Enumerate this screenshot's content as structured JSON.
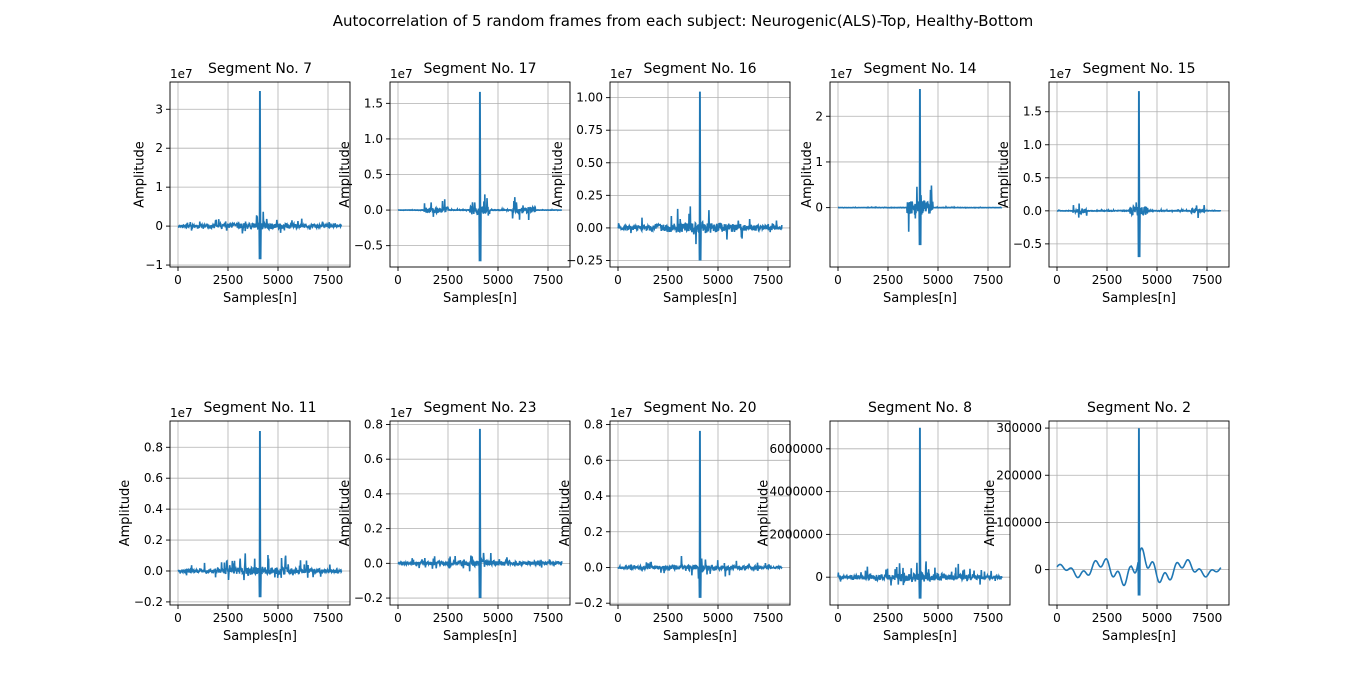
{
  "figure": {
    "suptitle": "Autocorrelation of 5 random frames from each subject: Neurogenic(ALS)-Top, Healthy-Bottom"
  },
  "style": {
    "line_color": "#1f77b4",
    "grid_color": "#b0b0b0",
    "text_color": "#000000"
  },
  "chart_data": [
    {
      "type": "line",
      "title": "Segment No. 7",
      "xlabel": "Samples[n]",
      "ylabel": "Amplitude",
      "xlim": [
        -400,
        8600
      ],
      "xticks": [
        0,
        2500,
        5000,
        7500
      ],
      "xtick_labels": [
        "0",
        "2500",
        "5000",
        "7500"
      ],
      "ylim": [
        -1.05,
        3.7
      ],
      "yticks": [
        -1,
        0,
        1,
        2,
        3
      ],
      "ytick_labels": [
        "−1",
        "0",
        "1",
        "2",
        "3"
      ],
      "offset_text": "1e7",
      "grid": true,
      "center": 4096,
      "peak": 3.45,
      "min": -0.85,
      "max_side": 0.72,
      "profile": "burst"
    },
    {
      "type": "line",
      "title": "Segment No. 17",
      "xlabel": "Samples[n]",
      "ylabel": "Amplitude",
      "xlim": [
        -400,
        8600
      ],
      "xticks": [
        0,
        2500,
        5000,
        7500
      ],
      "xtick_labels": [
        "0",
        "2500",
        "5000",
        "7500"
      ],
      "ylim": [
        -0.8,
        1.8
      ],
      "yticks": [
        -0.5,
        0,
        0.5,
        1,
        1.5
      ],
      "ytick_labels": [
        "−0.5",
        "0.0",
        "0.5",
        "1.0",
        "1.5"
      ],
      "offset_text": "1e7",
      "grid": true,
      "center": 4096,
      "peak": 1.65,
      "min": -0.72,
      "max_side": 0.42,
      "profile": "two_lobes"
    },
    {
      "type": "line",
      "title": "Segment No. 16",
      "xlabel": "Samples[n]",
      "ylabel": "Amplitude",
      "xlim": [
        -400,
        8600
      ],
      "xticks": [
        0,
        2500,
        5000,
        7500
      ],
      "xtick_labels": [
        "0",
        "2500",
        "5000",
        "7500"
      ],
      "ylim": [
        -0.3,
        1.12
      ],
      "yticks": [
        -0.25,
        0,
        0.25,
        0.5,
        0.75,
        1
      ],
      "ytick_labels": [
        "−0.25",
        "0.00",
        "0.25",
        "0.50",
        "0.75",
        "1.00"
      ],
      "offset_text": "1e7",
      "grid": true,
      "center": 4096,
      "peak": 1.04,
      "min": -0.25,
      "max_side": 0.37,
      "profile": "burst"
    },
    {
      "type": "line",
      "title": "Segment No. 14",
      "xlabel": "Samples[n]",
      "ylabel": "Amplitude",
      "xlim": [
        -400,
        8600
      ],
      "xticks": [
        0,
        2500,
        5000,
        7500
      ],
      "xtick_labels": [
        "0",
        "2500",
        "5000",
        "7500"
      ],
      "ylim": [
        -1.3,
        2.75
      ],
      "yticks": [
        0,
        1,
        2
      ],
      "ytick_labels": [
        "0",
        "1",
        "2"
      ],
      "offset_text": "1e7",
      "grid": true,
      "center": 4096,
      "peak": 2.58,
      "min": -0.82,
      "max_side": 1.12,
      "profile": "central"
    },
    {
      "type": "line",
      "title": "Segment No. 15",
      "xlabel": "Samples[n]",
      "ylabel": "Amplitude",
      "xlim": [
        -400,
        8600
      ],
      "xticks": [
        0,
        2500,
        5000,
        7500
      ],
      "xtick_labels": [
        "0",
        "2500",
        "5000",
        "7500"
      ],
      "ylim": [
        -0.85,
        1.95
      ],
      "yticks": [
        -0.5,
        0,
        0.5,
        1,
        1.5
      ],
      "ytick_labels": [
        "−0.5",
        "0.0",
        "0.5",
        "1.0",
        "1.5"
      ],
      "offset_text": "1e7",
      "grid": true,
      "center": 4096,
      "peak": 1.8,
      "min": -0.7,
      "max_side": 0.45,
      "profile": "edges"
    },
    {
      "type": "line",
      "title": "Segment No. 11",
      "xlabel": "Samples[n]",
      "ylabel": "Amplitude",
      "xlim": [
        -400,
        8600
      ],
      "xticks": [
        0,
        2500,
        5000,
        7500
      ],
      "xtick_labels": [
        "0",
        "2500",
        "5000",
        "7500"
      ],
      "ylim": [
        -0.22,
        0.97
      ],
      "yticks": [
        -0.2,
        0,
        0.2,
        0.4,
        0.6,
        0.8
      ],
      "ytick_labels": [
        "−0.2",
        "0.0",
        "0.2",
        "0.4",
        "0.6",
        "0.8"
      ],
      "offset_text": "1e7",
      "grid": true,
      "center": 4096,
      "peak": 0.9,
      "min": -0.17,
      "max_side": 0.23,
      "profile": "burst"
    },
    {
      "type": "line",
      "title": "Segment No. 23",
      "xlabel": "Samples[n]",
      "ylabel": "Amplitude",
      "xlim": [
        -400,
        8600
      ],
      "xticks": [
        0,
        2500,
        5000,
        7500
      ],
      "xtick_labels": [
        "0",
        "2500",
        "5000",
        "7500"
      ],
      "ylim": [
        -0.24,
        0.82
      ],
      "yticks": [
        -0.2,
        0,
        0.2,
        0.4,
        0.6,
        0.8
      ],
      "ytick_labels": [
        "−0.2",
        "0.0",
        "0.2",
        "0.4",
        "0.6",
        "0.8"
      ],
      "offset_text": "1e7",
      "grid": true,
      "center": 4096,
      "peak": 0.77,
      "min": -0.2,
      "max_side": 0.22,
      "profile": "sparse"
    },
    {
      "type": "line",
      "title": "Segment No. 20",
      "xlabel": "Samples[n]",
      "ylabel": "Amplitude",
      "xlim": [
        -400,
        8600
      ],
      "xticks": [
        0,
        2500,
        5000,
        7500
      ],
      "xtick_labels": [
        "0",
        "2500",
        "5000",
        "7500"
      ],
      "ylim": [
        -0.21,
        0.82
      ],
      "yticks": [
        -0.2,
        0,
        0.2,
        0.4,
        0.6,
        0.8
      ],
      "ytick_labels": [
        "−0.2",
        "0.0",
        "0.2",
        "0.4",
        "0.6",
        "0.8"
      ],
      "offset_text": "1e7",
      "grid": true,
      "center": 4096,
      "peak": 0.76,
      "min": -0.17,
      "max_side": 0.2,
      "profile": "sparse"
    },
    {
      "type": "line",
      "title": "Segment No. 8",
      "xlabel": "Samples[n]",
      "ylabel": "Amplitude",
      "xlim": [
        -400,
        8600
      ],
      "xticks": [
        0,
        2500,
        5000,
        7500
      ],
      "xtick_labels": [
        "0",
        "2500",
        "5000",
        "7500"
      ],
      "ylim": [
        -1300000,
        7300000
      ],
      "yticks": [
        0,
        2000000,
        4000000,
        6000000
      ],
      "ytick_labels": [
        "0",
        "2000000",
        "4000000",
        "6000000"
      ],
      "offset_text": "",
      "grid": true,
      "center": 4096,
      "peak": 6950000,
      "min": -1000000,
      "max_side": 1800000,
      "profile": "burst"
    },
    {
      "type": "line",
      "title": "Segment No. 2",
      "xlabel": "Samples[n]",
      "ylabel": "Amplitude",
      "xlim": [
        -400,
        8600
      ],
      "xticks": [
        0,
        2500,
        5000,
        7500
      ],
      "xtick_labels": [
        "0",
        "2500",
        "5000",
        "7500"
      ],
      "ylim": [
        -75000,
        315000
      ],
      "yticks": [
        0,
        100000,
        200000,
        300000
      ],
      "ytick_labels": [
        "0",
        "100000",
        "200000",
        "300000"
      ],
      "offset_text": "",
      "grid": true,
      "center": 4096,
      "peak": 298000,
      "min": -55000,
      "max_side": 52000,
      "profile": "smooth"
    }
  ]
}
